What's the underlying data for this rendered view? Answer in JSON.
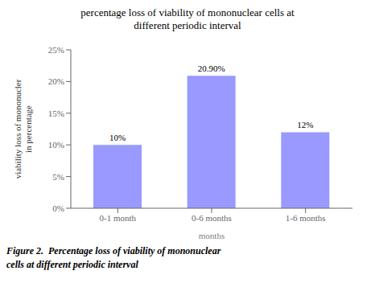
{
  "chart_data": {
    "type": "bar",
    "title": "percentage loss of viability of mononuclear cells at\ndifferent periodic interval",
    "caption": "Figure 2.  Percentage loss of viability of mononuclear\ncells at different periodic interval",
    "xlabel": "months",
    "ylabel": "viability loss of mononucler\nin percentage",
    "categories": [
      "0-1 month",
      "0-6 months",
      "1-6 months"
    ],
    "values": [
      10,
      20.9,
      12
    ],
    "value_labels": [
      "10%",
      "20.90%",
      "12%"
    ],
    "data_labels": true,
    "color": "#9999ff",
    "ylim": [
      0,
      25
    ],
    "yticks": [
      {
        "value": 0,
        "label": "0%"
      },
      {
        "value": 5,
        "label": "5%"
      },
      {
        "value": 10,
        "label": "10%"
      },
      {
        "value": 15,
        "label": "15%"
      },
      {
        "value": 20,
        "label": "20%"
      },
      {
        "value": 25,
        "label": "25%"
      }
    ],
    "grid": false
  }
}
